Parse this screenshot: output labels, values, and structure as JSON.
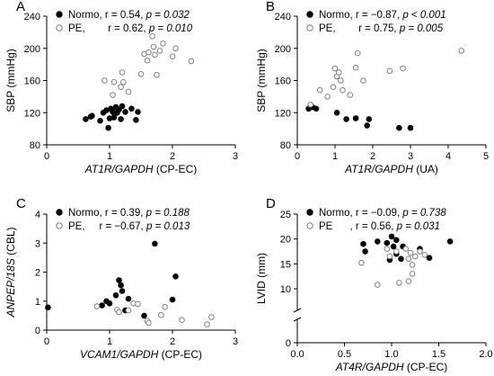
{
  "chart_data": [
    {
      "type": "scatter",
      "letter": "A",
      "xlabel_italic": "AT1R/GAPDH",
      "xlabel_rest": " (CP-EC)",
      "ylabel": "SBP (mmHg)",
      "xlim": [
        0,
        3
      ],
      "ylim": [
        80,
        240
      ],
      "xticks": [
        0,
        1,
        2,
        3
      ],
      "yticks": [
        80,
        120,
        160,
        200,
        240
      ],
      "ybreak": false,
      "legend": [
        {
          "name": "Normo",
          "r_text": ", r = 0.54, ",
          "p_text": "p = 0.032"
        },
        {
          "name": "PE",
          "r_text": ",        r = 0.62, ",
          "p_text": "p = 0.010"
        }
      ],
      "series": [
        {
          "name": "Normo",
          "marker": "filled",
          "points": [
            [
              0.62,
              112
            ],
            [
              0.7,
              115
            ],
            [
              0.72,
              116
            ],
            [
              0.85,
              110
            ],
            [
              0.9,
              120
            ],
            [
              0.95,
              123
            ],
            [
              0.98,
              101
            ],
            [
              1.0,
              113
            ],
            [
              1.02,
              125
            ],
            [
              1.05,
              121
            ],
            [
              1.07,
              114
            ],
            [
              1.1,
              127
            ],
            [
              1.12,
              120
            ],
            [
              1.15,
              124
            ],
            [
              1.18,
              112
            ],
            [
              1.2,
              128
            ],
            [
              1.25,
              121
            ],
            [
              1.35,
              125
            ],
            [
              1.42,
              111
            ],
            [
              1.45,
              121
            ]
          ]
        },
        {
          "name": "PE",
          "marker": "open",
          "points": [
            [
              0.92,
              160
            ],
            [
              1.05,
              142
            ],
            [
              1.07,
              158
            ],
            [
              1.18,
              152
            ],
            [
              1.2,
              170
            ],
            [
              1.22,
              158
            ],
            [
              1.3,
              146
            ],
            [
              1.5,
              168
            ],
            [
              1.55,
              193
            ],
            [
              1.6,
              185
            ],
            [
              1.62,
              195
            ],
            [
              1.68,
              215
            ],
            [
              1.7,
              202
            ],
            [
              1.72,
              192
            ],
            [
              1.75,
              167
            ],
            [
              1.8,
              197
            ],
            [
              1.85,
              206
            ],
            [
              2.0,
              190
            ],
            [
              2.05,
              200
            ],
            [
              2.3,
              184
            ]
          ]
        }
      ]
    },
    {
      "type": "scatter",
      "letter": "B",
      "xlabel_italic": "AT1R/GAPDH",
      "xlabel_rest": " (UA)",
      "ylabel": "SBP (mmHg)",
      "xlim": [
        0,
        5
      ],
      "ylim": [
        80,
        240
      ],
      "xticks": [
        0,
        1,
        2,
        3,
        4,
        5
      ],
      "yticks": [
        80,
        120,
        160,
        200,
        240
      ],
      "ybreak": false,
      "legend": [
        {
          "name": "Normo",
          "r_text": ", r = −0.87, ",
          "p_text": "p < 0.001"
        },
        {
          "name": "PE",
          "r_text": ",        r = 0.75, ",
          "p_text": "p = 0.005"
        }
      ],
      "series": [
        {
          "name": "Normo",
          "marker": "filled",
          "points": [
            [
              0.3,
              125
            ],
            [
              0.4,
              127
            ],
            [
              0.5,
              125
            ],
            [
              1.05,
              120
            ],
            [
              1.3,
              112
            ],
            [
              1.55,
              113
            ],
            [
              1.85,
              104
            ],
            [
              1.9,
              112
            ],
            [
              2.7,
              101
            ],
            [
              3.0,
              101
            ]
          ]
        },
        {
          "name": "PE",
          "marker": "open",
          "points": [
            [
              0.35,
              130
            ],
            [
              0.6,
              148
            ],
            [
              0.8,
              140
            ],
            [
              0.95,
              152
            ],
            [
              1.0,
              175
            ],
            [
              1.05,
              165
            ],
            [
              1.1,
              170
            ],
            [
              1.15,
              160
            ],
            [
              1.2,
              148
            ],
            [
              1.4,
              142
            ],
            [
              1.55,
              176
            ],
            [
              1.6,
              194
            ],
            [
              1.75,
              160
            ],
            [
              2.45,
              172
            ],
            [
              2.8,
              175
            ],
            [
              4.35,
              197
            ]
          ]
        }
      ]
    },
    {
      "type": "scatter",
      "letter": "C",
      "xlabel_italic": "VCAM1/GAPDH",
      "xlabel_rest": " (CP-EC)",
      "ylabel_italic": "ANPEP/18S",
      "ylabel_rest": " (CBL)",
      "xlim": [
        0,
        3
      ],
      "ylim": [
        0,
        4
      ],
      "xticks": [
        0,
        1,
        2,
        3
      ],
      "yticks": [
        0,
        1,
        2,
        3,
        4
      ],
      "ybreak": false,
      "legend": [
        {
          "name": "Normo",
          "r_text": ", r = 0.39, ",
          "p_text": "p = 0.188"
        },
        {
          "name": "PE",
          "r_text": ",     r = −0.67, ",
          "p_text": "p = 0.013"
        }
      ],
      "series": [
        {
          "name": "Normo",
          "marker": "filled",
          "points": [
            [
              0.02,
              0.78
            ],
            [
              0.88,
              0.85
            ],
            [
              0.95,
              1.0
            ],
            [
              1.0,
              0.92
            ],
            [
              1.1,
              1.2
            ],
            [
              1.15,
              1.72
            ],
            [
              1.18,
              1.55
            ],
            [
              1.2,
              1.35
            ],
            [
              1.25,
              0.68
            ],
            [
              1.3,
              1.08
            ],
            [
              1.55,
              0.5
            ],
            [
              1.72,
              2.98
            ],
            [
              2.05,
              1.85
            ],
            [
              2.0,
              1.05
            ]
          ]
        },
        {
          "name": "PE",
          "marker": "open",
          "points": [
            [
              0.8,
              0.82
            ],
            [
              1.12,
              0.7
            ],
            [
              1.15,
              0.62
            ],
            [
              1.3,
              0.68
            ],
            [
              1.38,
              0.92
            ],
            [
              1.45,
              0.9
            ],
            [
              1.6,
              0.32
            ],
            [
              1.62,
              0.25
            ],
            [
              1.82,
              0.52
            ],
            [
              1.88,
              0.8
            ],
            [
              2.15,
              0.35
            ],
            [
              2.55,
              0.2
            ],
            [
              2.62,
              0.45
            ]
          ]
        }
      ]
    },
    {
      "type": "scatter",
      "letter": "D",
      "xlabel_italic": "AT4R/GAPDH",
      "xlabel_rest": " (CP-EC)",
      "ylabel": "LVID (mm)",
      "xlim": [
        0,
        2
      ],
      "ylim": [
        0,
        25
      ],
      "xticks": [
        0,
        0.5,
        1.0,
        1.5,
        2.0
      ],
      "xtick_labels": [
        "0.0",
        "0.5",
        "1.0",
        "1.5",
        "2.0"
      ],
      "yticks": [
        0,
        10,
        15,
        20,
        25
      ],
      "ybreak": true,
      "legend": [
        {
          "name": "Normo",
          "r_text": ", r = −0.09, ",
          "p_text": "p = 0.738"
        },
        {
          "name": "PE",
          "r_text": "      , r = 0.56, ",
          "p_text": "p = 0.031"
        }
      ],
      "series": [
        {
          "name": "Normo",
          "marker": "filled",
          "points": [
            [
              0.7,
              19.0
            ],
            [
              0.72,
              17.5
            ],
            [
              0.85,
              19.5
            ],
            [
              0.95,
              19.2
            ],
            [
              0.98,
              15.8
            ],
            [
              1.0,
              20.5
            ],
            [
              1.02,
              18.5
            ],
            [
              1.05,
              19.8
            ],
            [
              1.05,
              17.0
            ],
            [
              1.1,
              16.0
            ],
            [
              1.12,
              18.5
            ],
            [
              1.3,
              18.0
            ],
            [
              1.4,
              16.2
            ],
            [
              1.62,
              19.5
            ]
          ]
        },
        {
          "name": "PE",
          "marker": "open",
          "points": [
            [
              0.68,
              15.2
            ],
            [
              0.85,
              10.8
            ],
            [
              0.95,
              18.0
            ],
            [
              0.98,
              16.5
            ],
            [
              1.05,
              17.5
            ],
            [
              1.08,
              11.2
            ],
            [
              1.15,
              18.0
            ],
            [
              1.18,
              11.5
            ],
            [
              1.18,
              16.0
            ],
            [
              1.2,
              17.2
            ],
            [
              1.22,
              14.8
            ],
            [
              1.22,
              13.0
            ],
            [
              1.25,
              16.5
            ],
            [
              1.3,
              17.5
            ],
            [
              1.35,
              16.8
            ]
          ]
        }
      ]
    }
  ]
}
